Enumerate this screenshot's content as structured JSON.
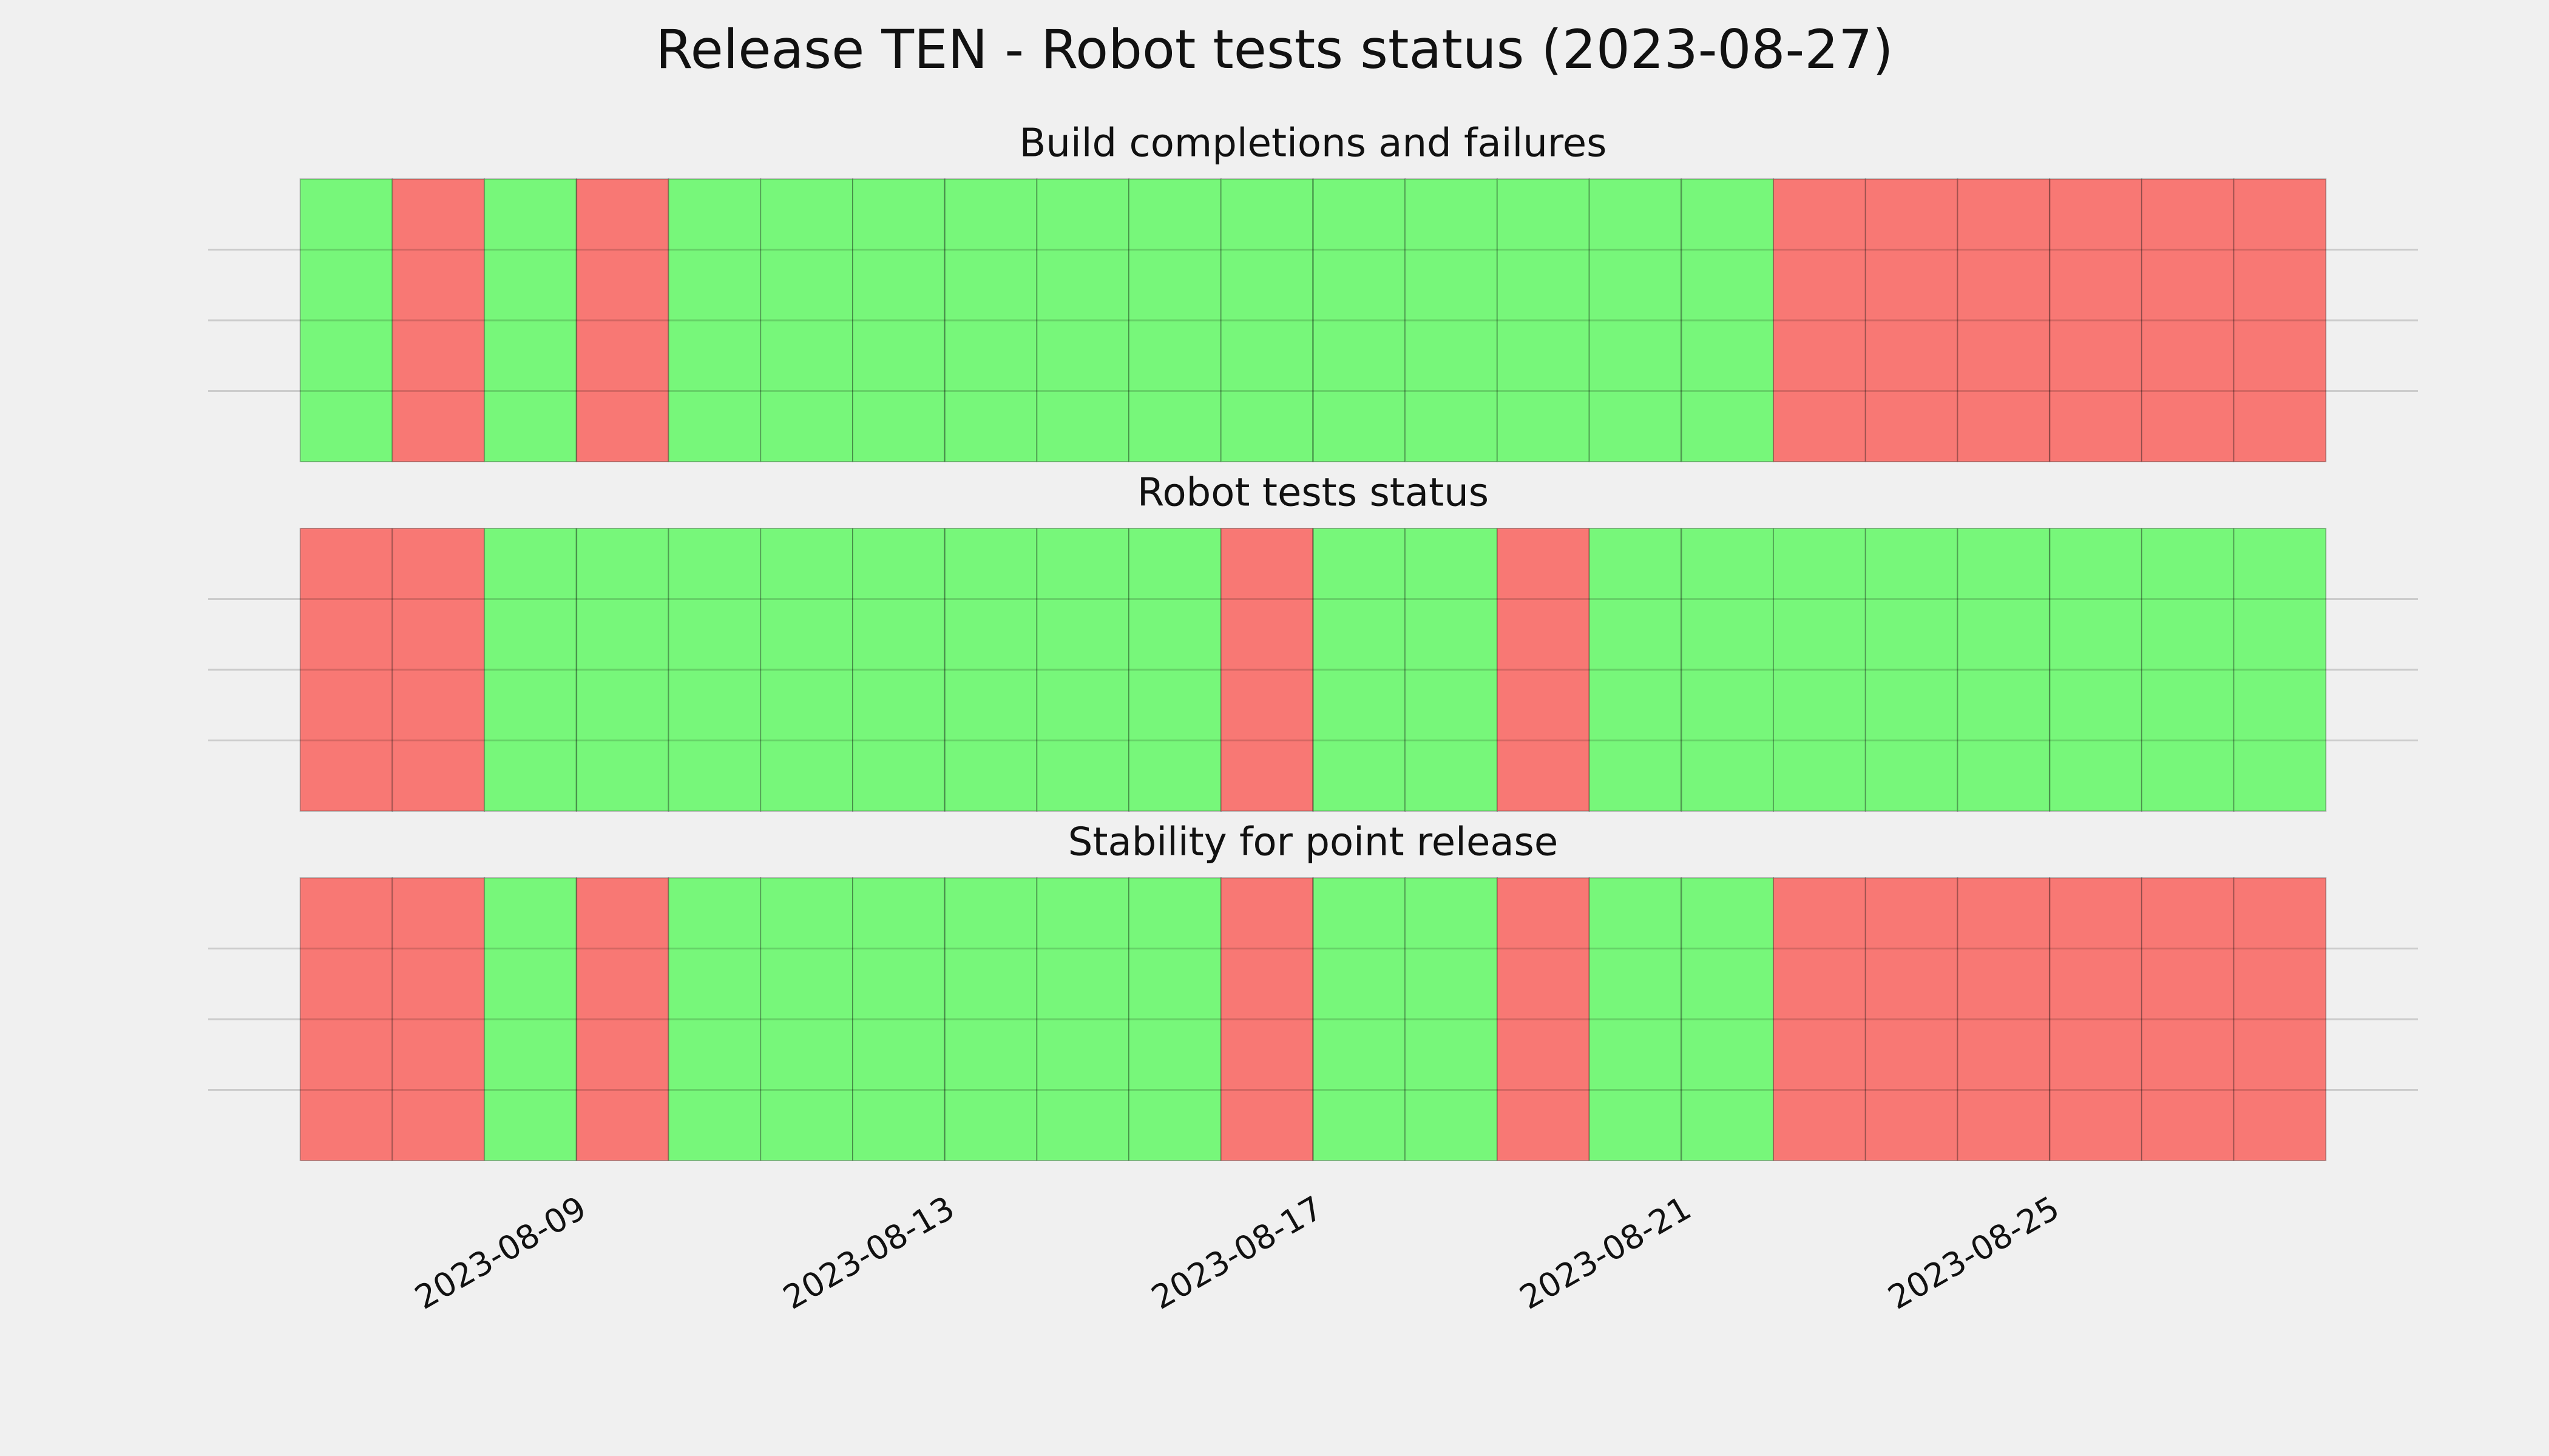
{
  "chart_data": [
    {
      "type": "timeline",
      "suptitle": "Release TEN - Robot tests status (2023-08-27)",
      "title": "Build completions and failures",
      "x": [
        "2023-08-06",
        "2023-08-07",
        "2023-08-08",
        "2023-08-09",
        "2023-08-10",
        "2023-08-11",
        "2023-08-12",
        "2023-08-13",
        "2023-08-14",
        "2023-08-15",
        "2023-08-16",
        "2023-08-17",
        "2023-08-18",
        "2023-08-19",
        "2023-08-20",
        "2023-08-21",
        "2023-08-22",
        "2023-08-23",
        "2023-08-24",
        "2023-08-25",
        "2023-08-26",
        "2023-08-27"
      ],
      "values": [
        1,
        0,
        1,
        0,
        1,
        1,
        1,
        1,
        1,
        1,
        1,
        1,
        1,
        1,
        1,
        1,
        0,
        0,
        0,
        0,
        0,
        0
      ],
      "colors": [
        "#f87874",
        "#77f77a"
      ],
      "xlim": [
        "2023-08-05",
        "2023-08-29"
      ],
      "ylim": [
        0,
        1
      ],
      "yticks": [
        0.25,
        0.5,
        0.75
      ],
      "xticks": [
        "2023-08-09",
        "2023-08-13",
        "2023-08-17",
        "2023-08-21",
        "2023-08-25"
      ],
      "grid": true
    },
    {
      "type": "timeline",
      "title": "Robot tests status",
      "x": [
        "2023-08-06",
        "2023-08-07",
        "2023-08-08",
        "2023-08-09",
        "2023-08-10",
        "2023-08-11",
        "2023-08-12",
        "2023-08-13",
        "2023-08-14",
        "2023-08-15",
        "2023-08-16",
        "2023-08-17",
        "2023-08-18",
        "2023-08-19",
        "2023-08-20",
        "2023-08-21",
        "2023-08-22",
        "2023-08-23",
        "2023-08-24",
        "2023-08-25",
        "2023-08-26",
        "2023-08-27"
      ],
      "values": [
        0,
        0,
        1,
        1,
        1,
        1,
        1,
        1,
        1,
        1,
        0,
        1,
        1,
        0,
        1,
        1,
        1,
        1,
        1,
        1,
        1,
        1
      ],
      "colors": [
        "#f87874",
        "#77f77a"
      ],
      "xlim": [
        "2023-08-05",
        "2023-08-29"
      ],
      "ylim": [
        0,
        1
      ],
      "yticks": [
        0.25,
        0.5,
        0.75
      ],
      "xticks": [
        "2023-08-09",
        "2023-08-13",
        "2023-08-17",
        "2023-08-21",
        "2023-08-25"
      ],
      "grid": true
    },
    {
      "type": "timeline",
      "title": "Stability for point release",
      "x": [
        "2023-08-06",
        "2023-08-07",
        "2023-08-08",
        "2023-08-09",
        "2023-08-10",
        "2023-08-11",
        "2023-08-12",
        "2023-08-13",
        "2023-08-14",
        "2023-08-15",
        "2023-08-16",
        "2023-08-17",
        "2023-08-18",
        "2023-08-19",
        "2023-08-20",
        "2023-08-21",
        "2023-08-22",
        "2023-08-23",
        "2023-08-24",
        "2023-08-25",
        "2023-08-26",
        "2023-08-27"
      ],
      "values": [
        0,
        0,
        1,
        0,
        1,
        1,
        1,
        1,
        1,
        1,
        0,
        1,
        1,
        0,
        1,
        1,
        0,
        0,
        0,
        0,
        0,
        0
      ],
      "colors": [
        "#f87874",
        "#77f77a"
      ],
      "xlim": [
        "2023-08-05",
        "2023-08-29"
      ],
      "ylim": [
        0,
        1
      ],
      "yticks": [
        0.25,
        0.5,
        0.75
      ],
      "xticks": [
        "2023-08-09",
        "2023-08-13",
        "2023-08-17",
        "2023-08-21",
        "2023-08-25"
      ],
      "grid": true,
      "show_xticklabels": true
    }
  ]
}
